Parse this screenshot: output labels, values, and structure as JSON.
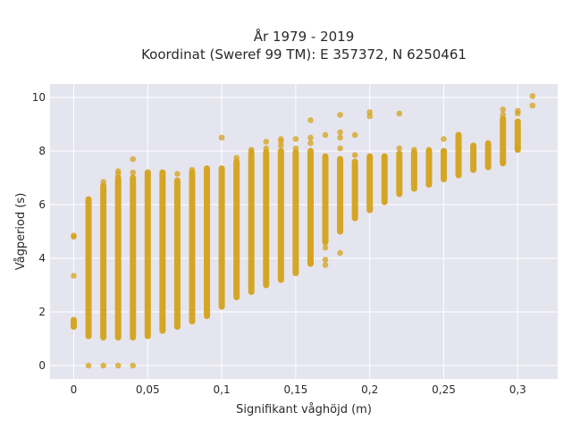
{
  "chart_data": {
    "type": "scatter",
    "title_line1": "År 1979 - 2019",
    "title_line2": "Koordinat (Sweref 99 TM): E 357372, N 6250461",
    "xlabel": "Signifikant våghöjd (m)",
    "ylabel": "Vågperiod (s)",
    "xlim": [
      -0.016,
      0.327
    ],
    "ylim": [
      -0.5,
      10.5
    ],
    "x_ticks": [
      0,
      0.05,
      0.1,
      0.15,
      0.2,
      0.25,
      0.3
    ],
    "x_tick_labels": [
      "0",
      "0,05",
      "0,1",
      "0,15",
      "0,2",
      "0,25",
      "0,3"
    ],
    "y_ticks": [
      0,
      2,
      4,
      6,
      8,
      10
    ],
    "y_tick_labels": [
      "0",
      "2",
      "4",
      "6",
      "8",
      "10"
    ],
    "grid": true,
    "colors": {
      "marker": "#d4a21a",
      "plot_bg": "#e5e5ef",
      "grid": "#ffffff"
    },
    "columns": [
      {
        "x": 0.0,
        "y_min": 1.45,
        "y_max": 1.7
      },
      {
        "x": 0.01,
        "y_min": 1.1,
        "y_max": 6.2
      },
      {
        "x": 0.02,
        "y_min": 1.05,
        "y_max": 6.7
      },
      {
        "x": 0.03,
        "y_min": 1.05,
        "y_max": 7.0
      },
      {
        "x": 0.04,
        "y_min": 1.05,
        "y_max": 7.0
      },
      {
        "x": 0.05,
        "y_min": 1.1,
        "y_max": 7.2
      },
      {
        "x": 0.06,
        "y_min": 1.3,
        "y_max": 7.2
      },
      {
        "x": 0.07,
        "y_min": 1.45,
        "y_max": 6.9
      },
      {
        "x": 0.08,
        "y_min": 1.65,
        "y_max": 7.2
      },
      {
        "x": 0.09,
        "y_min": 1.85,
        "y_max": 7.35
      },
      {
        "x": 0.1,
        "y_min": 2.2,
        "y_max": 7.35
      },
      {
        "x": 0.11,
        "y_min": 2.55,
        "y_max": 7.6
      },
      {
        "x": 0.12,
        "y_min": 2.75,
        "y_max": 7.9
      },
      {
        "x": 0.13,
        "y_min": 3.0,
        "y_max": 7.95
      },
      {
        "x": 0.14,
        "y_min": 3.2,
        "y_max": 8.0
      },
      {
        "x": 0.15,
        "y_min": 3.45,
        "y_max": 7.95
      },
      {
        "x": 0.16,
        "y_min": 3.8,
        "y_max": 8.0
      },
      {
        "x": 0.17,
        "y_min": 4.6,
        "y_max": 7.8
      },
      {
        "x": 0.18,
        "y_min": 5.0,
        "y_max": 7.7
      },
      {
        "x": 0.19,
        "y_min": 5.5,
        "y_max": 7.6
      },
      {
        "x": 0.2,
        "y_min": 5.8,
        "y_max": 7.8
      },
      {
        "x": 0.21,
        "y_min": 6.1,
        "y_max": 7.8
      },
      {
        "x": 0.22,
        "y_min": 6.4,
        "y_max": 7.9
      },
      {
        "x": 0.23,
        "y_min": 6.6,
        "y_max": 7.95
      },
      {
        "x": 0.24,
        "y_min": 6.75,
        "y_max": 8.0
      },
      {
        "x": 0.25,
        "y_min": 6.95,
        "y_max": 8.0
      },
      {
        "x": 0.26,
        "y_min": 7.1,
        "y_max": 8.6
      },
      {
        "x": 0.27,
        "y_min": 7.3,
        "y_max": 8.2
      },
      {
        "x": 0.28,
        "y_min": 7.4,
        "y_max": 8.25
      },
      {
        "x": 0.29,
        "y_min": 7.55,
        "y_max": 9.2
      },
      {
        "x": 0.3,
        "y_min": 8.05,
        "y_max": 9.1
      }
    ],
    "points": [
      [
        0.0,
        4.85
      ],
      [
        0.0,
        4.8
      ],
      [
        0.0,
        3.35
      ],
      [
        0.01,
        0.0
      ],
      [
        0.02,
        0.0
      ],
      [
        0.03,
        0.0
      ],
      [
        0.04,
        0.0
      ],
      [
        0.02,
        6.85
      ],
      [
        0.03,
        7.25
      ],
      [
        0.03,
        7.15
      ],
      [
        0.03,
        6.8
      ],
      [
        0.04,
        7.7
      ],
      [
        0.04,
        7.2
      ],
      [
        0.07,
        7.15
      ],
      [
        0.08,
        7.3
      ],
      [
        0.1,
        8.5
      ],
      [
        0.11,
        7.75
      ],
      [
        0.12,
        8.05
      ],
      [
        0.12,
        8.0
      ],
      [
        0.13,
        8.35
      ],
      [
        0.13,
        8.1
      ],
      [
        0.14,
        8.45
      ],
      [
        0.14,
        8.35
      ],
      [
        0.14,
        8.2
      ],
      [
        0.15,
        8.45
      ],
      [
        0.15,
        8.1
      ],
      [
        0.16,
        9.15
      ],
      [
        0.16,
        8.5
      ],
      [
        0.16,
        8.3
      ],
      [
        0.16,
        4.5
      ],
      [
        0.16,
        4.1
      ],
      [
        0.16,
        3.95
      ],
      [
        0.16,
        3.85
      ],
      [
        0.16,
        3.8
      ],
      [
        0.17,
        8.6
      ],
      [
        0.17,
        4.4
      ],
      [
        0.17,
        3.95
      ],
      [
        0.17,
        3.75
      ],
      [
        0.18,
        9.35
      ],
      [
        0.18,
        8.7
      ],
      [
        0.18,
        8.5
      ],
      [
        0.18,
        8.1
      ],
      [
        0.18,
        4.2
      ],
      [
        0.19,
        8.6
      ],
      [
        0.19,
        7.85
      ],
      [
        0.2,
        9.45
      ],
      [
        0.2,
        9.3
      ],
      [
        0.2,
        7.75
      ],
      [
        0.21,
        7.75
      ],
      [
        0.22,
        9.4
      ],
      [
        0.22,
        8.1
      ],
      [
        0.23,
        8.05
      ],
      [
        0.24,
        8.05
      ],
      [
        0.25,
        8.45
      ],
      [
        0.25,
        8.0
      ],
      [
        0.28,
        8.3
      ],
      [
        0.29,
        9.55
      ],
      [
        0.29,
        9.35
      ],
      [
        0.29,
        7.55
      ],
      [
        0.3,
        9.5
      ],
      [
        0.3,
        9.4
      ],
      [
        0.3,
        8.1
      ],
      [
        0.31,
        10.05
      ],
      [
        0.31,
        9.7
      ]
    ]
  }
}
